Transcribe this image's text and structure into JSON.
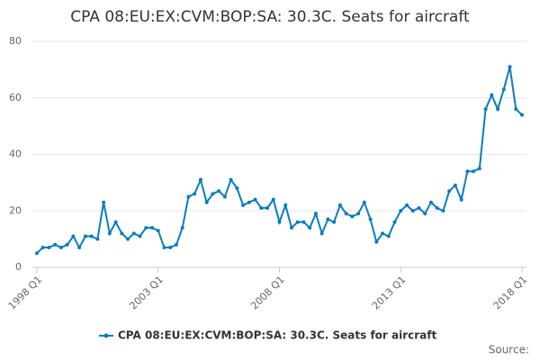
{
  "chart_data": {
    "type": "line",
    "title": "CPA 08:EU:EX:CVM:BOP:SA: 30.3C. Seats for aircraft",
    "categories": [
      "1998 Q1",
      null,
      null,
      null,
      null,
      null,
      null,
      null,
      null,
      null,
      null,
      null,
      null,
      null,
      null,
      null,
      null,
      null,
      null,
      null,
      "2003 Q1",
      null,
      null,
      null,
      null,
      null,
      null,
      null,
      null,
      null,
      null,
      null,
      null,
      null,
      null,
      null,
      null,
      null,
      null,
      null,
      "2008 Q1",
      null,
      null,
      null,
      null,
      null,
      null,
      null,
      null,
      null,
      null,
      null,
      null,
      null,
      null,
      null,
      null,
      null,
      null,
      null,
      "2013 Q1",
      null,
      null,
      null,
      null,
      null,
      null,
      null,
      null,
      null,
      null,
      null,
      null,
      null,
      null,
      null,
      null,
      null,
      null,
      null,
      "2018 Q1"
    ],
    "series": [
      {
        "name": "CPA 08:EU:EX:CVM:BOP:SA: 30.3C. Seats for aircraft",
        "color": "#0b7dbb",
        "values": [
          5,
          7,
          7,
          8,
          7,
          8,
          11,
          7,
          11,
          11,
          10,
          23,
          12,
          16,
          12,
          10,
          12,
          11,
          14,
          14,
          13,
          7,
          7,
          8,
          14,
          25,
          26,
          31,
          23,
          26,
          27,
          25,
          31,
          28,
          22,
          23,
          24,
          21,
          21,
          24,
          16,
          22,
          14,
          16,
          16,
          14,
          19,
          12,
          17,
          16,
          22,
          19,
          18,
          19,
          23,
          17,
          9,
          12,
          11,
          16,
          20,
          22,
          20,
          21,
          19,
          23,
          21,
          20,
          27,
          29,
          24,
          34,
          34,
          35,
          56,
          61,
          56,
          63,
          71,
          56,
          54
        ]
      }
    ],
    "ylim": [
      0,
      80
    ],
    "yticks": [
      0,
      20,
      40,
      60,
      80
    ],
    "grid": true,
    "source": "Source:"
  }
}
